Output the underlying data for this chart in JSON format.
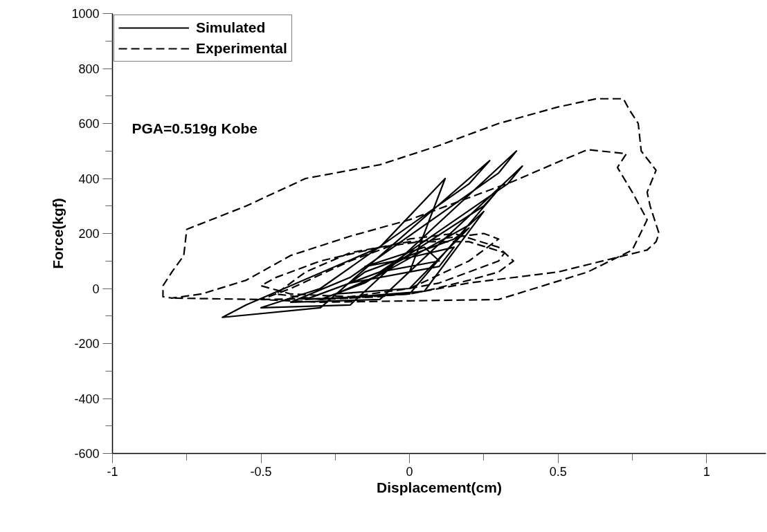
{
  "chart_data": {
    "type": "line",
    "xlabel": "Displacement(cm)",
    "ylabel": "Force(kgf)",
    "xlim": [
      -1,
      1.2
    ],
    "ylim": [
      -600,
      1000
    ],
    "xticks": [
      -1,
      {
        "value": -0.75,
        "label": null
      },
      -0.5,
      {
        "value": -0.25,
        "label": null
      },
      0,
      {
        "value": 0.25,
        "label": null
      },
      0.5,
      {
        "value": 0.75,
        "label": null
      },
      1
    ],
    "yticks": [
      -600,
      {
        "value": -500,
        "label": null
      },
      -400,
      {
        "value": -300,
        "label": null
      },
      -200,
      {
        "value": -100,
        "label": null
      },
      0,
      {
        "value": 100,
        "label": null
      },
      200,
      {
        "value": 300,
        "label": null
      },
      400,
      {
        "value": 500,
        "label": null
      },
      600,
      {
        "value": 700,
        "label": null
      },
      800,
      {
        "value": 900,
        "label": null
      },
      1000
    ],
    "grid": false,
    "legend": "top left",
    "marker": "none",
    "annotations": [
      "PGA=0.519g Kobe"
    ],
    "series": [
      {
        "name": "Simulated",
        "color": "#000000",
        "line_style": "solid",
        "x": [
          0,
          0.12,
          -0.1,
          -0.55,
          -0.63,
          -0.3,
          0.27,
          0.2,
          -0.3,
          -0.5,
          -0.2,
          0.36,
          0.3,
          -0.2,
          -0.4,
          -0.1,
          0.38,
          0.33,
          -0.1,
          -0.35,
          0,
          0.3,
          0.25,
          -0.15,
          -0.3,
          0.05,
          0.25,
          0.2,
          -0.1,
          -0.25,
          0,
          0.2,
          0.15,
          -0.15,
          -0.2,
          0.1,
          0.15,
          -0.05,
          -0.15,
          0.05,
          0.1,
          -0.1,
          0
        ],
        "values": [
          60,
          400,
          150,
          -60,
          -105,
          -70,
          465,
          380,
          0,
          -70,
          -60,
          500,
          420,
          40,
          -50,
          -40,
          445,
          380,
          60,
          -40,
          -20,
          360,
          300,
          20,
          -40,
          -10,
          280,
          230,
          50,
          -20,
          0,
          220,
          180,
          60,
          20,
          80,
          150,
          100,
          80,
          150,
          100,
          60,
          120
        ]
      },
      {
        "name": "Experimental",
        "color": "#000000",
        "line_style": "dashed",
        "x": [
          0,
          0.2,
          0.3,
          0.25,
          0.1,
          -0.1,
          -0.3,
          -0.45,
          -0.5,
          -0.4,
          -0.2,
          0,
          0.1,
          0.3,
          0.32,
          0.2,
          0,
          -0.2,
          -0.35,
          -0.45,
          -0.3,
          -0.1,
          0.05,
          0.2,
          0.3,
          0.35,
          0.3,
          0.15,
          0,
          -0.2,
          -0.4,
          -0.5,
          -0.3,
          0,
          0.3,
          0.6,
          0.75,
          0.8,
          0.75,
          0.7,
          0.73,
          0.6,
          0.5,
          0.35,
          0.2,
          0,
          -0.2,
          -0.4,
          -0.55,
          -0.7,
          -0.8,
          -0.83,
          -0.83,
          -0.8,
          -0.76,
          -0.75,
          -0.55,
          -0.35,
          -0.1,
          0.1,
          0.3,
          0.5,
          0.63,
          0.72,
          0.74,
          0.77,
          0.78,
          0.83,
          0.8,
          0.81,
          0.84,
          0.83,
          0.8,
          0.5,
          0.2,
          0,
          -0.2,
          -0.5,
          -0.8
        ],
        "values": [
          0,
          100,
          180,
          200,
          180,
          150,
          100,
          40,
          10,
          -20,
          -30,
          0,
          20,
          100,
          130,
          170,
          170,
          130,
          60,
          -20,
          -40,
          -30,
          -10,
          30,
          60,
          100,
          150,
          200,
          180,
          100,
          0,
          -40,
          -50,
          -45,
          -40,
          60,
          140,
          250,
          350,
          440,
          490,
          505,
          460,
          390,
          330,
          250,
          190,
          120,
          30,
          -20,
          -35,
          -30,
          10,
          60,
          120,
          215,
          300,
          400,
          450,
          520,
          600,
          660,
          690,
          690,
          650,
          600,
          500,
          430,
          350,
          300,
          200,
          170,
          140,
          60,
          20,
          -20,
          -35,
          -40,
          -35
        ]
      }
    ]
  }
}
